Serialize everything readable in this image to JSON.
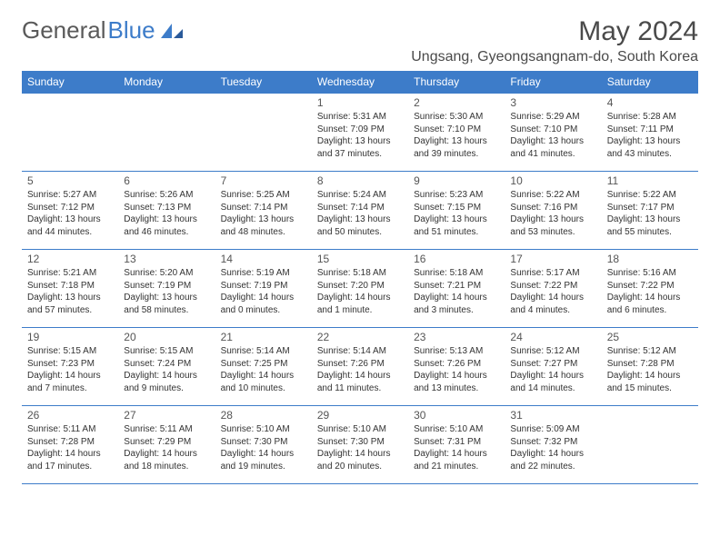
{
  "brand": {
    "part1": "General",
    "part2": "Blue"
  },
  "title": "May 2024",
  "location": "Ungsang, Gyeongsangnam-do, South Korea",
  "colors": {
    "header_bg": "#3d7cc9",
    "header_text": "#ffffff",
    "border": "#3d7cc9",
    "text": "#333333",
    "title_text": "#4a4a4a",
    "logo_gray": "#5a5a5a",
    "logo_blue": "#3d7cc9",
    "background": "#ffffff"
  },
  "day_headers": [
    "Sunday",
    "Monday",
    "Tuesday",
    "Wednesday",
    "Thursday",
    "Friday",
    "Saturday"
  ],
  "weeks": [
    [
      {
        "num": "",
        "sunrise": "",
        "sunset": "",
        "daylight": ""
      },
      {
        "num": "",
        "sunrise": "",
        "sunset": "",
        "daylight": ""
      },
      {
        "num": "",
        "sunrise": "",
        "sunset": "",
        "daylight": ""
      },
      {
        "num": "1",
        "sunrise": "Sunrise: 5:31 AM",
        "sunset": "Sunset: 7:09 PM",
        "daylight": "Daylight: 13 hours and 37 minutes."
      },
      {
        "num": "2",
        "sunrise": "Sunrise: 5:30 AM",
        "sunset": "Sunset: 7:10 PM",
        "daylight": "Daylight: 13 hours and 39 minutes."
      },
      {
        "num": "3",
        "sunrise": "Sunrise: 5:29 AM",
        "sunset": "Sunset: 7:10 PM",
        "daylight": "Daylight: 13 hours and 41 minutes."
      },
      {
        "num": "4",
        "sunrise": "Sunrise: 5:28 AM",
        "sunset": "Sunset: 7:11 PM",
        "daylight": "Daylight: 13 hours and 43 minutes."
      }
    ],
    [
      {
        "num": "5",
        "sunrise": "Sunrise: 5:27 AM",
        "sunset": "Sunset: 7:12 PM",
        "daylight": "Daylight: 13 hours and 44 minutes."
      },
      {
        "num": "6",
        "sunrise": "Sunrise: 5:26 AM",
        "sunset": "Sunset: 7:13 PM",
        "daylight": "Daylight: 13 hours and 46 minutes."
      },
      {
        "num": "7",
        "sunrise": "Sunrise: 5:25 AM",
        "sunset": "Sunset: 7:14 PM",
        "daylight": "Daylight: 13 hours and 48 minutes."
      },
      {
        "num": "8",
        "sunrise": "Sunrise: 5:24 AM",
        "sunset": "Sunset: 7:14 PM",
        "daylight": "Daylight: 13 hours and 50 minutes."
      },
      {
        "num": "9",
        "sunrise": "Sunrise: 5:23 AM",
        "sunset": "Sunset: 7:15 PM",
        "daylight": "Daylight: 13 hours and 51 minutes."
      },
      {
        "num": "10",
        "sunrise": "Sunrise: 5:22 AM",
        "sunset": "Sunset: 7:16 PM",
        "daylight": "Daylight: 13 hours and 53 minutes."
      },
      {
        "num": "11",
        "sunrise": "Sunrise: 5:22 AM",
        "sunset": "Sunset: 7:17 PM",
        "daylight": "Daylight: 13 hours and 55 minutes."
      }
    ],
    [
      {
        "num": "12",
        "sunrise": "Sunrise: 5:21 AM",
        "sunset": "Sunset: 7:18 PM",
        "daylight": "Daylight: 13 hours and 57 minutes."
      },
      {
        "num": "13",
        "sunrise": "Sunrise: 5:20 AM",
        "sunset": "Sunset: 7:19 PM",
        "daylight": "Daylight: 13 hours and 58 minutes."
      },
      {
        "num": "14",
        "sunrise": "Sunrise: 5:19 AM",
        "sunset": "Sunset: 7:19 PM",
        "daylight": "Daylight: 14 hours and 0 minutes."
      },
      {
        "num": "15",
        "sunrise": "Sunrise: 5:18 AM",
        "sunset": "Sunset: 7:20 PM",
        "daylight": "Daylight: 14 hours and 1 minute."
      },
      {
        "num": "16",
        "sunrise": "Sunrise: 5:18 AM",
        "sunset": "Sunset: 7:21 PM",
        "daylight": "Daylight: 14 hours and 3 minutes."
      },
      {
        "num": "17",
        "sunrise": "Sunrise: 5:17 AM",
        "sunset": "Sunset: 7:22 PM",
        "daylight": "Daylight: 14 hours and 4 minutes."
      },
      {
        "num": "18",
        "sunrise": "Sunrise: 5:16 AM",
        "sunset": "Sunset: 7:22 PM",
        "daylight": "Daylight: 14 hours and 6 minutes."
      }
    ],
    [
      {
        "num": "19",
        "sunrise": "Sunrise: 5:15 AM",
        "sunset": "Sunset: 7:23 PM",
        "daylight": "Daylight: 14 hours and 7 minutes."
      },
      {
        "num": "20",
        "sunrise": "Sunrise: 5:15 AM",
        "sunset": "Sunset: 7:24 PM",
        "daylight": "Daylight: 14 hours and 9 minutes."
      },
      {
        "num": "21",
        "sunrise": "Sunrise: 5:14 AM",
        "sunset": "Sunset: 7:25 PM",
        "daylight": "Daylight: 14 hours and 10 minutes."
      },
      {
        "num": "22",
        "sunrise": "Sunrise: 5:14 AM",
        "sunset": "Sunset: 7:26 PM",
        "daylight": "Daylight: 14 hours and 11 minutes."
      },
      {
        "num": "23",
        "sunrise": "Sunrise: 5:13 AM",
        "sunset": "Sunset: 7:26 PM",
        "daylight": "Daylight: 14 hours and 13 minutes."
      },
      {
        "num": "24",
        "sunrise": "Sunrise: 5:12 AM",
        "sunset": "Sunset: 7:27 PM",
        "daylight": "Daylight: 14 hours and 14 minutes."
      },
      {
        "num": "25",
        "sunrise": "Sunrise: 5:12 AM",
        "sunset": "Sunset: 7:28 PM",
        "daylight": "Daylight: 14 hours and 15 minutes."
      }
    ],
    [
      {
        "num": "26",
        "sunrise": "Sunrise: 5:11 AM",
        "sunset": "Sunset: 7:28 PM",
        "daylight": "Daylight: 14 hours and 17 minutes."
      },
      {
        "num": "27",
        "sunrise": "Sunrise: 5:11 AM",
        "sunset": "Sunset: 7:29 PM",
        "daylight": "Daylight: 14 hours and 18 minutes."
      },
      {
        "num": "28",
        "sunrise": "Sunrise: 5:10 AM",
        "sunset": "Sunset: 7:30 PM",
        "daylight": "Daylight: 14 hours and 19 minutes."
      },
      {
        "num": "29",
        "sunrise": "Sunrise: 5:10 AM",
        "sunset": "Sunset: 7:30 PM",
        "daylight": "Daylight: 14 hours and 20 minutes."
      },
      {
        "num": "30",
        "sunrise": "Sunrise: 5:10 AM",
        "sunset": "Sunset: 7:31 PM",
        "daylight": "Daylight: 14 hours and 21 minutes."
      },
      {
        "num": "31",
        "sunrise": "Sunrise: 5:09 AM",
        "sunset": "Sunset: 7:32 PM",
        "daylight": "Daylight: 14 hours and 22 minutes."
      },
      {
        "num": "",
        "sunrise": "",
        "sunset": "",
        "daylight": ""
      }
    ]
  ]
}
